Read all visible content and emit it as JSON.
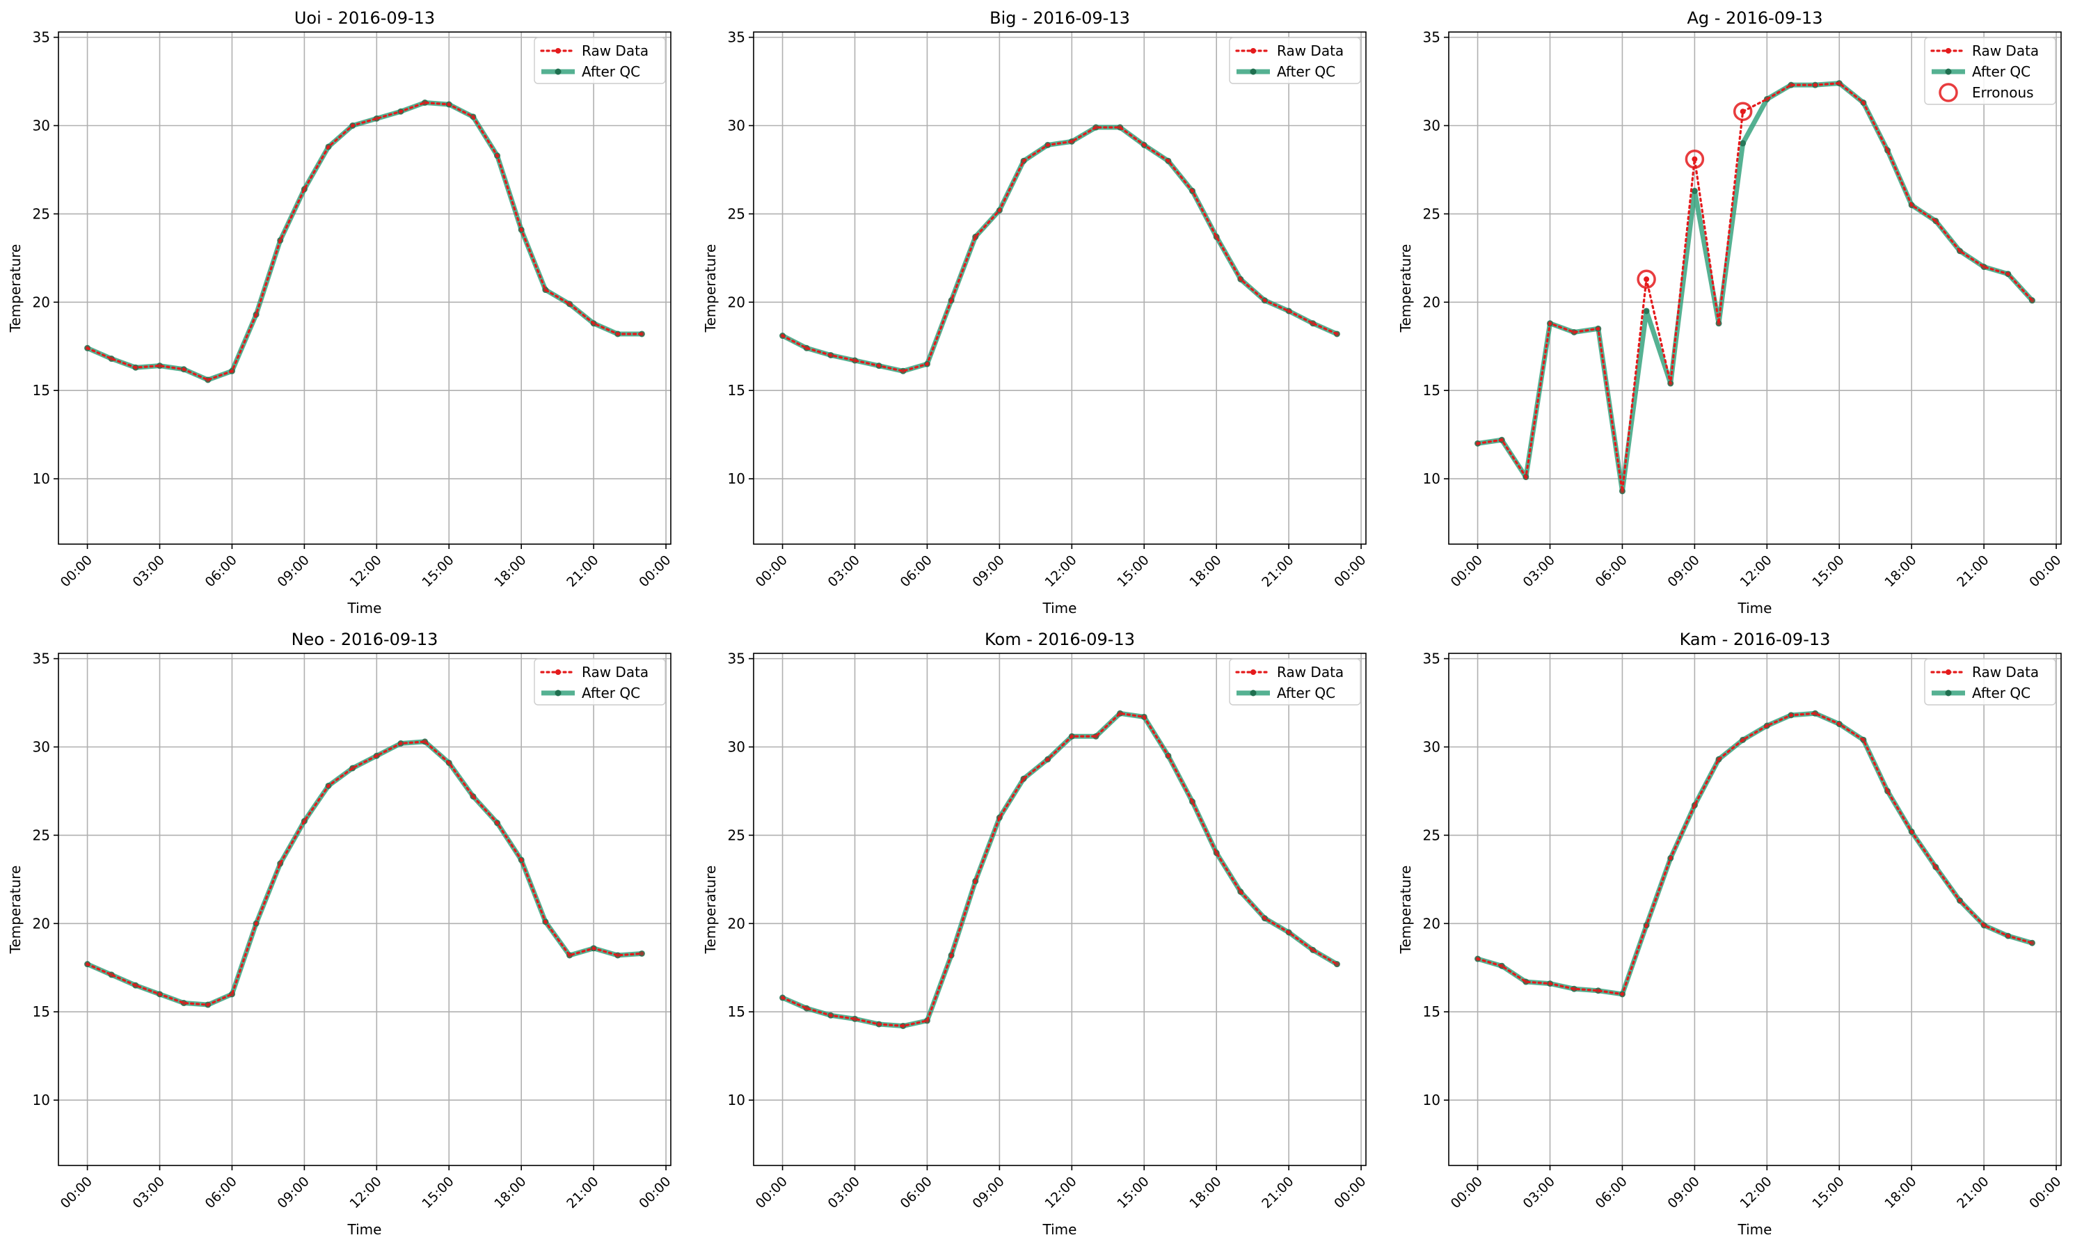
{
  "colors": {
    "raw": "#e41a1c",
    "qc": "#2a9d77",
    "qc_marker": "#1f6f4f",
    "grid": "#b0b0b0",
    "erroneous": "#e41a1c"
  },
  "chart_data": [
    {
      "type": "line",
      "title": "Uoi - 2016-09-13",
      "xlabel": "Time",
      "ylabel": "Temperature",
      "xticks": [
        "00:00",
        "03:00",
        "06:00",
        "09:00",
        "12:00",
        "15:00",
        "18:00",
        "21:00",
        "00:00"
      ],
      "yticks": [
        10,
        15,
        20,
        25,
        30,
        35
      ],
      "xlim": [
        -1.2,
        24.2
      ],
      "ylim": [
        6.3,
        35.3
      ],
      "grid": true,
      "legend": "top-right",
      "x": [
        0,
        1,
        2,
        3,
        4,
        5,
        6,
        7,
        8,
        9,
        10,
        11,
        12,
        13,
        14,
        15,
        16,
        17,
        18,
        19,
        20,
        21,
        22,
        23
      ],
      "series": [
        {
          "name": "Raw Data",
          "values": [
            17.4,
            16.8,
            16.3,
            16.4,
            16.2,
            15.6,
            16.1,
            19.3,
            23.5,
            26.4,
            28.8,
            30.0,
            30.4,
            30.8,
            31.3,
            31.2,
            30.5,
            28.3,
            24.1,
            20.7,
            19.9,
            18.8,
            18.2,
            18.2
          ]
        },
        {
          "name": "After QC",
          "values": [
            17.4,
            16.8,
            16.3,
            16.4,
            16.2,
            15.6,
            16.1,
            19.3,
            23.5,
            26.4,
            28.8,
            30.0,
            30.4,
            30.8,
            31.3,
            31.2,
            30.5,
            28.3,
            24.1,
            20.7,
            19.9,
            18.8,
            18.2,
            18.2
          ]
        }
      ],
      "erroneous": []
    },
    {
      "type": "line",
      "title": "Big - 2016-09-13",
      "xlabel": "Time",
      "ylabel": "Temperature",
      "xticks": [
        "00:00",
        "03:00",
        "06:00",
        "09:00",
        "12:00",
        "15:00",
        "18:00",
        "21:00",
        "00:00"
      ],
      "yticks": [
        10,
        15,
        20,
        25,
        30,
        35
      ],
      "xlim": [
        -1.2,
        24.2
      ],
      "ylim": [
        6.3,
        35.3
      ],
      "grid": true,
      "legend": "top-right",
      "x": [
        0,
        1,
        2,
        3,
        4,
        5,
        6,
        7,
        8,
        9,
        10,
        11,
        12,
        13,
        14,
        15,
        16,
        17,
        18,
        19,
        20,
        21,
        22,
        23
      ],
      "series": [
        {
          "name": "Raw Data",
          "values": [
            18.1,
            17.4,
            17.0,
            16.7,
            16.4,
            16.1,
            16.5,
            20.1,
            23.7,
            25.2,
            28.0,
            28.9,
            29.1,
            29.9,
            29.9,
            28.9,
            28.0,
            26.3,
            23.7,
            21.3,
            20.1,
            19.5,
            18.8,
            18.2
          ]
        },
        {
          "name": "After QC",
          "values": [
            18.1,
            17.4,
            17.0,
            16.7,
            16.4,
            16.1,
            16.5,
            20.1,
            23.7,
            25.2,
            28.0,
            28.9,
            29.1,
            29.9,
            29.9,
            28.9,
            28.0,
            26.3,
            23.7,
            21.3,
            20.1,
            19.5,
            18.8,
            18.2
          ]
        }
      ],
      "erroneous": []
    },
    {
      "type": "line",
      "title": "Ag - 2016-09-13",
      "xlabel": "Time",
      "ylabel": "Temperature",
      "xticks": [
        "00:00",
        "03:00",
        "06:00",
        "09:00",
        "12:00",
        "15:00",
        "18:00",
        "21:00",
        "00:00"
      ],
      "yticks": [
        10,
        15,
        20,
        25,
        30,
        35
      ],
      "xlim": [
        -1.2,
        24.2
      ],
      "ylim": [
        6.3,
        35.3
      ],
      "grid": true,
      "legend": "top-right",
      "x": [
        0,
        1,
        2,
        3,
        4,
        5,
        6,
        7,
        8,
        9,
        10,
        11,
        12,
        13,
        14,
        15,
        16,
        17,
        18,
        19,
        20,
        21,
        22,
        23
      ],
      "series": [
        {
          "name": "Raw Data",
          "values": [
            12.0,
            12.2,
            10.1,
            18.8,
            18.3,
            18.5,
            9.3,
            21.3,
            15.4,
            28.1,
            18.8,
            30.8,
            31.5,
            32.3,
            32.3,
            32.4,
            31.3,
            28.6,
            25.5,
            24.6,
            22.9,
            22.0,
            21.6,
            20.1
          ]
        },
        {
          "name": "After QC",
          "values": [
            12.0,
            12.2,
            10.1,
            18.8,
            18.3,
            18.5,
            9.3,
            19.5,
            15.4,
            26.3,
            18.8,
            29.0,
            31.5,
            32.3,
            32.3,
            32.4,
            31.3,
            28.6,
            25.5,
            24.6,
            22.9,
            22.0,
            21.6,
            20.1
          ]
        }
      ],
      "erroneous": [
        {
          "x": 7,
          "y": 21.3
        },
        {
          "x": 9,
          "y": 28.1
        },
        {
          "x": 11,
          "y": 30.8
        }
      ],
      "erroneous_label": "Erronous"
    },
    {
      "type": "line",
      "title": "Neo - 2016-09-13",
      "xlabel": "Time",
      "ylabel": "Temperature",
      "xticks": [
        "00:00",
        "03:00",
        "06:00",
        "09:00",
        "12:00",
        "15:00",
        "18:00",
        "21:00",
        "00:00"
      ],
      "yticks": [
        10,
        15,
        20,
        25,
        30,
        35
      ],
      "xlim": [
        -1.2,
        24.2
      ],
      "ylim": [
        6.3,
        35.3
      ],
      "grid": true,
      "legend": "top-right",
      "x": [
        0,
        1,
        2,
        3,
        4,
        5,
        6,
        7,
        8,
        9,
        10,
        11,
        12,
        13,
        14,
        15,
        16,
        17,
        18,
        19,
        20,
        21,
        22,
        23
      ],
      "series": [
        {
          "name": "Raw Data",
          "values": [
            17.7,
            17.1,
            16.5,
            16.0,
            15.5,
            15.4,
            16.0,
            20.0,
            23.4,
            25.8,
            27.8,
            28.8,
            29.5,
            30.2,
            30.3,
            29.1,
            27.2,
            25.7,
            23.6,
            20.1,
            18.2,
            18.6,
            18.2,
            18.3
          ]
        },
        {
          "name": "After QC",
          "values": [
            17.7,
            17.1,
            16.5,
            16.0,
            15.5,
            15.4,
            16.0,
            20.0,
            23.4,
            25.8,
            27.8,
            28.8,
            29.5,
            30.2,
            30.3,
            29.1,
            27.2,
            25.7,
            23.6,
            20.1,
            18.2,
            18.6,
            18.2,
            18.3
          ]
        }
      ],
      "erroneous": []
    },
    {
      "type": "line",
      "title": "Kom - 2016-09-13",
      "xlabel": "Time",
      "ylabel": "Temperature",
      "xticks": [
        "00:00",
        "03:00",
        "06:00",
        "09:00",
        "12:00",
        "15:00",
        "18:00",
        "21:00",
        "00:00"
      ],
      "yticks": [
        10,
        15,
        20,
        25,
        30,
        35
      ],
      "xlim": [
        -1.2,
        24.2
      ],
      "ylim": [
        6.3,
        35.3
      ],
      "grid": true,
      "legend": "top-right",
      "x": [
        0,
        1,
        2,
        3,
        4,
        5,
        6,
        7,
        8,
        9,
        10,
        11,
        12,
        13,
        14,
        15,
        16,
        17,
        18,
        19,
        20,
        21,
        22,
        23
      ],
      "series": [
        {
          "name": "Raw Data",
          "values": [
            15.8,
            15.2,
            14.8,
            14.6,
            14.3,
            14.2,
            14.5,
            18.2,
            22.4,
            26.0,
            28.2,
            29.3,
            30.6,
            30.6,
            31.9,
            31.7,
            29.5,
            26.9,
            24.0,
            21.8,
            20.3,
            19.5,
            18.5,
            17.7
          ]
        },
        {
          "name": "After QC",
          "values": [
            15.8,
            15.2,
            14.8,
            14.6,
            14.3,
            14.2,
            14.5,
            18.2,
            22.4,
            26.0,
            28.2,
            29.3,
            30.6,
            30.6,
            31.9,
            31.7,
            29.5,
            26.9,
            24.0,
            21.8,
            20.3,
            19.5,
            18.5,
            17.7
          ]
        }
      ],
      "erroneous": []
    },
    {
      "type": "line",
      "title": "Kam - 2016-09-13",
      "xlabel": "Time",
      "ylabel": "Temperature",
      "xticks": [
        "00:00",
        "03:00",
        "06:00",
        "09:00",
        "12:00",
        "15:00",
        "18:00",
        "21:00",
        "00:00"
      ],
      "yticks": [
        10,
        15,
        20,
        25,
        30,
        35
      ],
      "xlim": [
        -1.2,
        24.2
      ],
      "ylim": [
        6.3,
        35.3
      ],
      "grid": true,
      "legend": "top-right",
      "x": [
        0,
        1,
        2,
        3,
        4,
        5,
        6,
        7,
        8,
        9,
        10,
        11,
        12,
        13,
        14,
        15,
        16,
        17,
        18,
        19,
        20,
        21,
        22,
        23
      ],
      "series": [
        {
          "name": "Raw Data",
          "values": [
            18.0,
            17.6,
            16.7,
            16.6,
            16.3,
            16.2,
            16.0,
            19.9,
            23.7,
            26.7,
            29.3,
            30.4,
            31.2,
            31.8,
            31.9,
            31.3,
            30.4,
            27.5,
            25.2,
            23.2,
            21.3,
            19.9,
            19.3,
            18.9
          ]
        },
        {
          "name": "After QC",
          "values": [
            18.0,
            17.6,
            16.7,
            16.6,
            16.3,
            16.2,
            16.0,
            19.9,
            23.7,
            26.7,
            29.3,
            30.4,
            31.2,
            31.8,
            31.9,
            31.3,
            30.4,
            27.5,
            25.2,
            23.2,
            21.3,
            19.9,
            19.3,
            18.9
          ]
        }
      ],
      "erroneous": []
    }
  ]
}
